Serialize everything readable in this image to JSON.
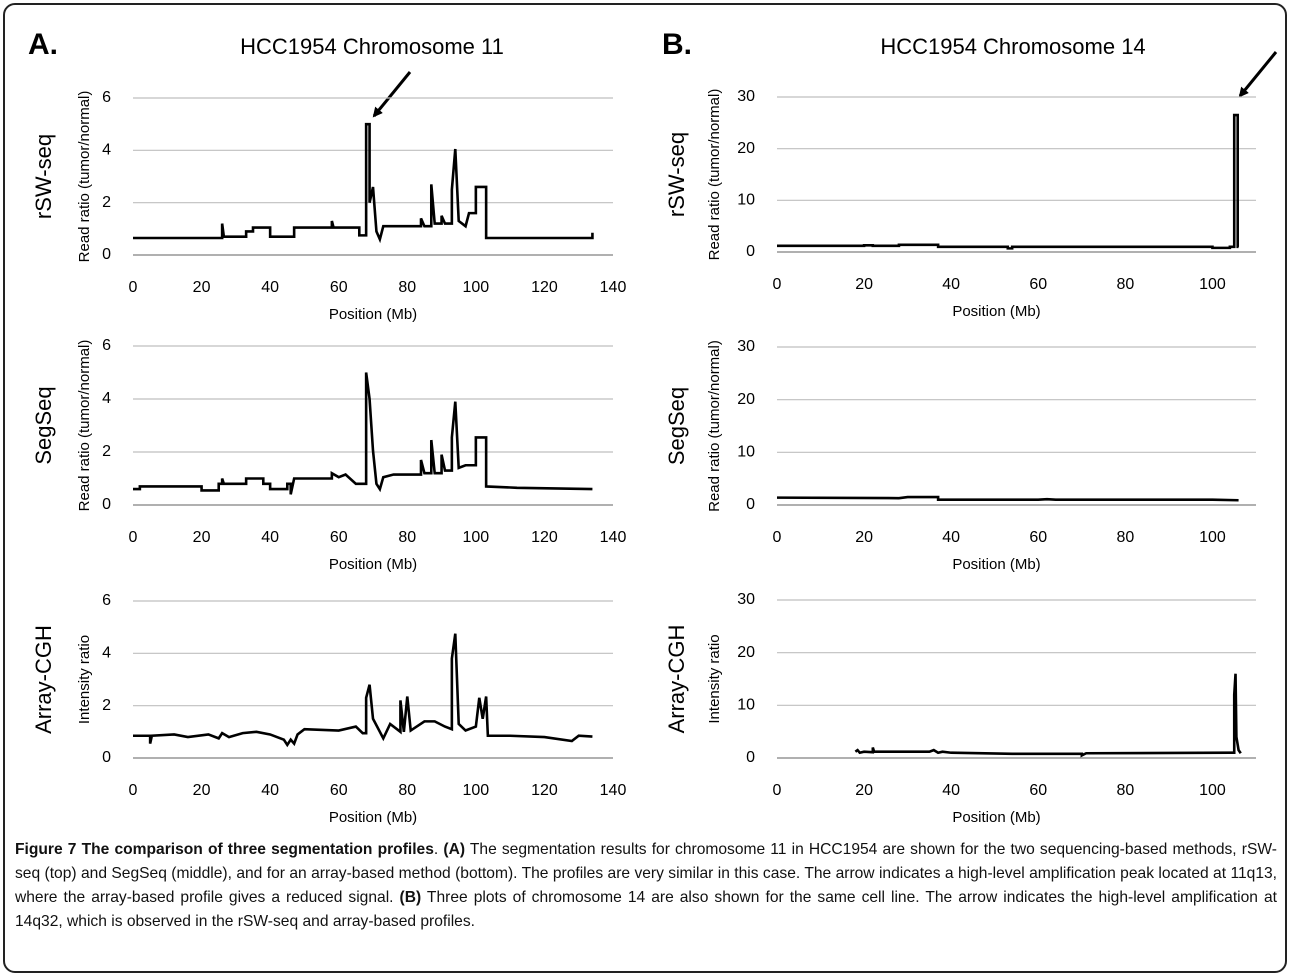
{
  "figure": {
    "panels": [
      {
        "label": "A.",
        "title": "HCC1954 Chromosome 11"
      },
      {
        "label": "B.",
        "title": "HCC1954 Chromosome 14"
      }
    ],
    "caption": [
      {
        "text": "Figure 7 The comparison of three segmentation profiles",
        "bold": true
      },
      {
        "text": ". ",
        "bold": false
      },
      {
        "text": "(A)",
        "bold": true
      },
      {
        "text": " The segmentation results for chromosome 11 in HCC1954 are shown for the two sequencing-based methods, rSW-seq (top) and SegSeq (middle), and for an array-based method (bottom). The profiles are very similar in this case. The arrow indicates a high-level amplification peak located at 11q13, where the array-based profile gives a reduced signal. ",
        "bold": false
      },
      {
        "text": "(B)",
        "bold": true
      },
      {
        "text": " Three plots of chromosome 14 are also shown for the same cell line. The arrow indicates the high-level amplification at 14q32, which is observed in the rSW-seq and array-based profiles.",
        "bold": false
      }
    ]
  },
  "chart_data": [
    {
      "type": "line",
      "row_label": "rSW-seq",
      "ylabel": "Read ratio (tumor/normal)",
      "xlabel": "Position (Mb)",
      "color": "#000000",
      "grid": true,
      "xlim": [
        0,
        140
      ],
      "xticks": [
        0,
        20,
        40,
        60,
        80,
        100,
        120,
        140
      ],
      "ylim": [
        0,
        6
      ],
      "yticks": [
        0,
        2,
        4,
        6
      ],
      "x": [
        0,
        26,
        26,
        26.5,
        33,
        33,
        35,
        35,
        40,
        40,
        47,
        47,
        58,
        58,
        58.5,
        66,
        66,
        68,
        68,
        69,
        69,
        70,
        71,
        72,
        73,
        84,
        84,
        85,
        87,
        87,
        88,
        90,
        90,
        91,
        93,
        93,
        94,
        95,
        97,
        98,
        100,
        100,
        103,
        103,
        134,
        134
      ],
      "values": [
        0.65,
        0.65,
        1.2,
        0.7,
        0.7,
        0.9,
        0.9,
        1.05,
        1.05,
        0.7,
        0.7,
        1.05,
        1.05,
        1.3,
        1.05,
        1.05,
        0.75,
        0.75,
        5,
        5,
        2,
        2.6,
        0.9,
        0.6,
        1.1,
        1.1,
        1.4,
        1.1,
        1.1,
        2.7,
        1.2,
        1.2,
        1.5,
        1.2,
        1.2,
        2.5,
        4.05,
        1.3,
        1.1,
        1.6,
        1.6,
        2.6,
        2.6,
        0.65,
        0.65,
        0.85
      ]
    },
    {
      "type": "line",
      "row_label": "SegSeq",
      "ylabel": "Read ratio (tumor/normal)",
      "xlabel": "Position (Mb)",
      "color": "#000000",
      "grid": true,
      "xlim": [
        0,
        140
      ],
      "xticks": [
        0,
        20,
        40,
        60,
        80,
        100,
        120,
        140
      ],
      "ylim": [
        0,
        6
      ],
      "yticks": [
        0,
        2,
        4,
        6
      ],
      "x": [
        0,
        2,
        2,
        20,
        20,
        25,
        25,
        26,
        26,
        26.5,
        33,
        33,
        38,
        38,
        40,
        40,
        45,
        45,
        46,
        46,
        47,
        58,
        58,
        60,
        62,
        65,
        68,
        68,
        69,
        70,
        71,
        72,
        73,
        76,
        84,
        84,
        85,
        87,
        87,
        88,
        90,
        90,
        91,
        93,
        93,
        94,
        95,
        97,
        100,
        100,
        103,
        103,
        112,
        134
      ],
      "values": [
        0.6,
        0.6,
        0.7,
        0.7,
        0.55,
        0.55,
        0.8,
        0.8,
        1,
        0.8,
        0.8,
        1,
        1,
        0.8,
        0.8,
        0.6,
        0.6,
        0.8,
        0.8,
        0.4,
        1,
        1,
        1.2,
        1.05,
        1.15,
        0.8,
        0.8,
        5,
        4,
        2.05,
        0.8,
        0.6,
        1.05,
        1.15,
        1.15,
        1.7,
        1.2,
        1.2,
        2.45,
        1.2,
        1.2,
        1.9,
        1.3,
        1.3,
        2.55,
        3.9,
        1.4,
        1.5,
        1.5,
        2.55,
        2.55,
        0.7,
        0.65,
        0.6
      ]
    },
    {
      "type": "line",
      "row_label": "Array-CGH",
      "ylabel": "Intensity ratio",
      "xlabel": "Position (Mb)",
      "color": "#000000",
      "grid": true,
      "xlim": [
        0,
        140
      ],
      "xticks": [
        0,
        20,
        40,
        60,
        80,
        100,
        120,
        140
      ],
      "ylim": [
        0,
        6
      ],
      "yticks": [
        0,
        2,
        4,
        6
      ],
      "x": [
        0,
        5,
        5,
        5.5,
        12,
        16,
        22,
        25,
        26,
        28,
        32,
        36,
        40,
        44,
        45,
        46,
        47,
        48,
        50,
        60,
        65,
        67,
        68,
        68,
        69,
        70,
        72,
        73,
        75,
        78,
        78,
        79,
        80,
        81,
        85,
        88,
        91,
        93,
        93,
        94,
        95,
        97,
        100,
        101,
        102,
        103,
        103.5,
        110,
        120,
        128,
        130,
        134
      ],
      "values": [
        0.85,
        0.85,
        0.55,
        0.85,
        0.9,
        0.8,
        0.9,
        0.75,
        0.95,
        0.8,
        0.95,
        1,
        0.9,
        0.7,
        0.5,
        0.7,
        0.55,
        0.9,
        1.1,
        1.05,
        1.2,
        0.95,
        0.95,
        2.3,
        2.8,
        1.5,
        1,
        0.75,
        1.3,
        1,
        2.2,
        1,
        2.35,
        1.05,
        1.4,
        1.4,
        1.2,
        1.1,
        3.8,
        4.75,
        1.3,
        1.05,
        1.2,
        2.3,
        1.5,
        2.35,
        0.85,
        0.85,
        0.8,
        0.65,
        0.85,
        0.82
      ]
    },
    {
      "type": "line",
      "row_label": "rSW-seq",
      "ylabel": "Read ratio (tumor/normal)",
      "xlabel": "Position (Mb)",
      "color": "#000000",
      "grid": true,
      "xlim": [
        0,
        110
      ],
      "xticks": [
        0,
        20,
        40,
        60,
        80,
        100
      ],
      "ylim": [
        0,
        30
      ],
      "yticks": [
        0,
        10,
        20,
        30
      ],
      "x": [
        0,
        20,
        20,
        22,
        22,
        28,
        28,
        37,
        37,
        53,
        53,
        54,
        54,
        100,
        100,
        104,
        104,
        105,
        105,
        105.8,
        105.8,
        106
      ],
      "values": [
        1.2,
        1.2,
        1.3,
        1.3,
        1.2,
        1.2,
        1.4,
        1.4,
        1,
        1,
        0.7,
        0.7,
        1,
        1,
        0.8,
        0.8,
        1,
        1,
        26.5,
        26.5,
        1,
        1
      ]
    },
    {
      "type": "line",
      "row_label": "SegSeq",
      "ylabel": "Read ratio (tumor/normal)",
      "xlabel": "Position (Mb)",
      "color": "#000000",
      "grid": true,
      "xlim": [
        0,
        110
      ],
      "xticks": [
        0,
        20,
        40,
        60,
        80,
        100
      ],
      "ylim": [
        0,
        30
      ],
      "yticks": [
        0,
        10,
        20,
        30
      ],
      "x": [
        0,
        28,
        30,
        37,
        37,
        60,
        62,
        64,
        100,
        106
      ],
      "values": [
        1.4,
        1.3,
        1.5,
        1.5,
        1.0,
        1.0,
        1.1,
        1.0,
        1.0,
        0.9
      ]
    },
    {
      "type": "line",
      "row_label": "Array-CGH",
      "ylabel": "Intensity ratio",
      "xlabel": "Position (Mb)",
      "color": "#000000",
      "grid": true,
      "xlim": [
        0,
        110
      ],
      "xticks": [
        0,
        20,
        40,
        60,
        80,
        100
      ],
      "ylim": [
        0,
        30
      ],
      "yticks": [
        0,
        10,
        20,
        30
      ],
      "x": [
        18,
        18.5,
        19,
        20,
        22,
        22,
        22.3,
        35,
        36,
        37,
        38,
        40,
        54,
        70,
        70,
        71,
        104,
        105,
        105,
        105.3,
        105.5,
        106,
        106.5
      ],
      "values": [
        1.2,
        1.5,
        1.0,
        1.2,
        1.1,
        2.0,
        1.2,
        1.2,
        1.5,
        1.0,
        1.2,
        1.0,
        0.8,
        0.8,
        0.5,
        0.9,
        1.0,
        1.0,
        12,
        16,
        4,
        1.5,
        0.9
      ]
    }
  ]
}
